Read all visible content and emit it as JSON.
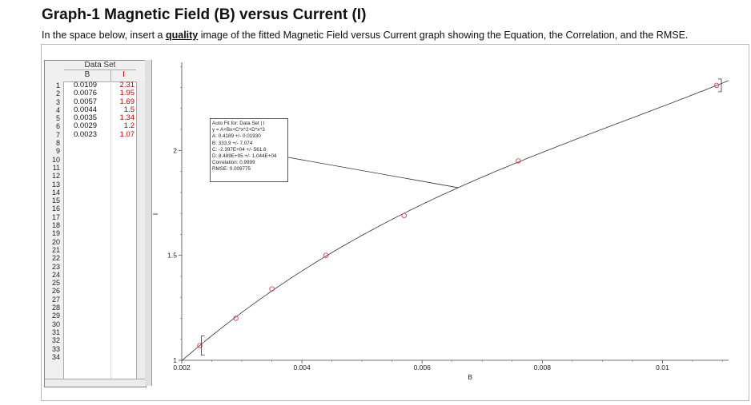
{
  "page": {
    "title": "Graph-1 Magnetic Field (B) versus Current (I)",
    "instructions_before": "In the space below, insert a ",
    "instructions_emphasis": "quality",
    "instructions_after": " image of the fitted Magnetic Field versus Current graph showing the Equation, the Correlation, and the RMSE."
  },
  "table": {
    "data_set_label": "Data Set",
    "col_b": "B",
    "col_i": "I",
    "row_count": 34,
    "rows_b": [
      "0.0109",
      "0.0076",
      "0.0057",
      "0.0044",
      "0.0035",
      "0.0029",
      "0.0023"
    ],
    "rows_i": [
      "2.31",
      "1.95",
      "1.69",
      "1.5",
      "1.34",
      "1.2",
      "1.07"
    ]
  },
  "annotation": {
    "lines": [
      "Auto Fit for: Data Set | I",
      "y = A+Bx+C*x^2+D*x^3",
      "A: 0.4189 +/- 0.01930",
      "B: 333.9 +/- 7.074",
      "C: -2.397E+04 +/- 561.6",
      "D: 8.489E+05 +/- 1.044E+04",
      "Correlation: 0.9999",
      "RMSE: 0.009775"
    ]
  },
  "chart_data": {
    "type": "scatter",
    "xlabel": "B",
    "ylabel": "I",
    "xlim": [
      0.002,
      0.0111
    ],
    "ylim": [
      1.0,
      2.42
    ],
    "x_ticks": [
      0.002,
      0.004,
      0.006,
      0.008,
      0.01
    ],
    "x_tick_labels": [
      "0.002",
      "0.004",
      "0.006",
      "0.008",
      "0.01"
    ],
    "y_ticks": [
      1,
      1.5,
      2
    ],
    "y_tick_labels": [
      "1",
      "1.5",
      "2"
    ],
    "grid": false,
    "points": [
      {
        "x": 0.0109,
        "y": 2.31
      },
      {
        "x": 0.0076,
        "y": 1.95
      },
      {
        "x": 0.0057,
        "y": 1.69
      },
      {
        "x": 0.0044,
        "y": 1.5
      },
      {
        "x": 0.0035,
        "y": 1.34
      },
      {
        "x": 0.0029,
        "y": 1.2
      },
      {
        "x": 0.0023,
        "y": 1.07
      }
    ],
    "fit": {
      "equation": "y = A+Bx+C*x^2+D*x^3",
      "A": 0.4189,
      "B": 333.9,
      "C": -23970,
      "D": 848900
    },
    "point_color": "#e0404a",
    "line_color": "#333333"
  }
}
